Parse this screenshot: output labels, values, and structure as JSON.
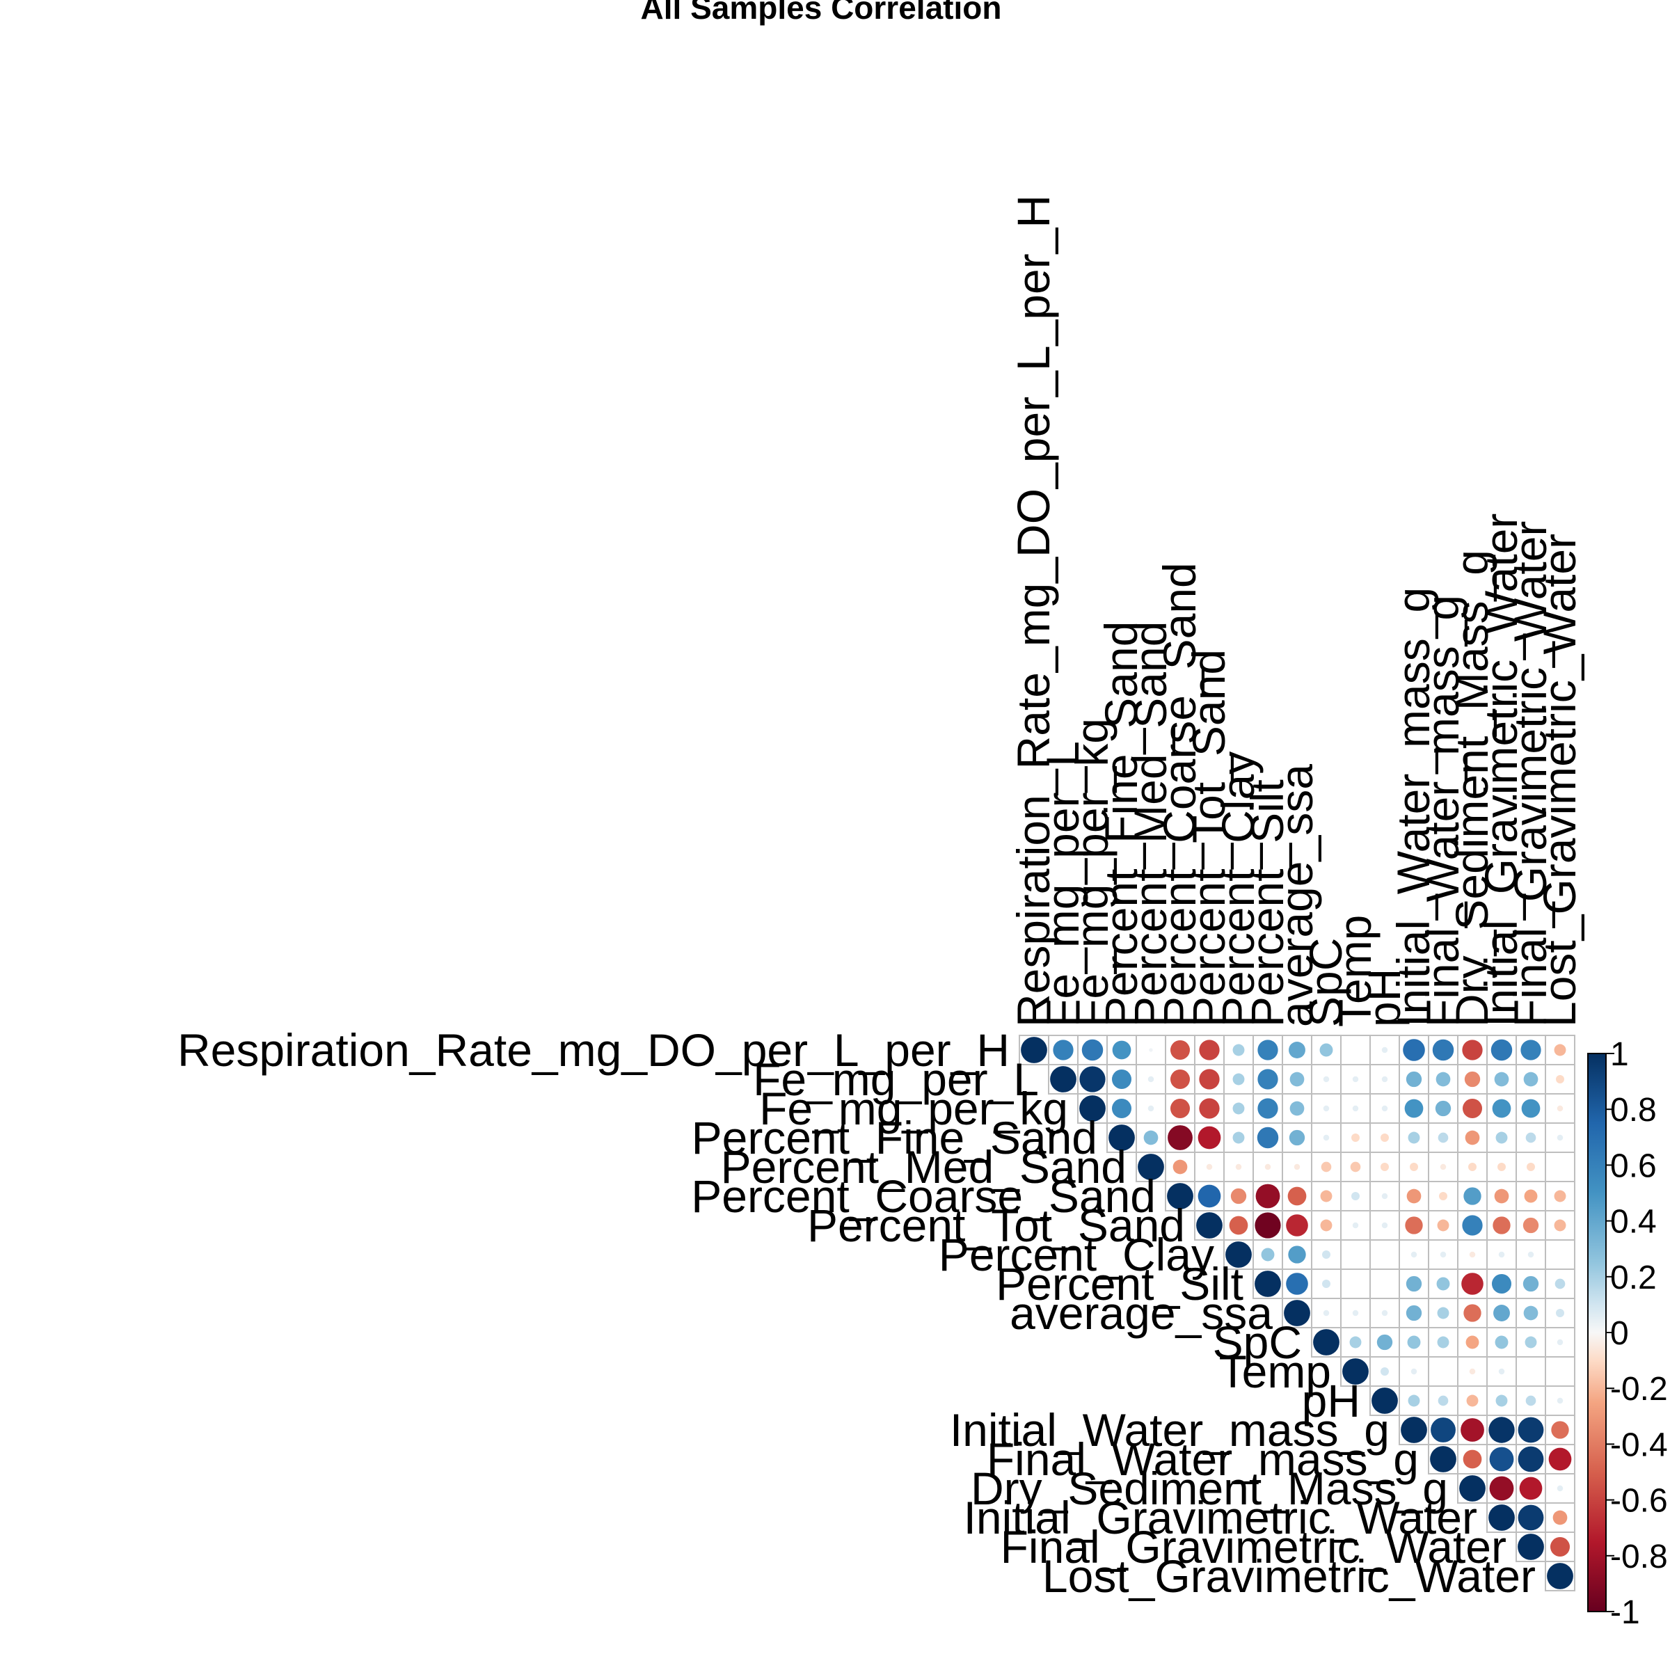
{
  "chart_data": {
    "type": "heatmap",
    "title": "All Samples Correlation",
    "xlabel": "",
    "ylabel": "",
    "variables": [
      "Respiration_Rate_mg_DO_per_L_per_H",
      "Fe_mg_per_L",
      "Fe_mg_per_kg",
      "Percent_Fine_Sand",
      "Percent_Med_Sand",
      "Percent_Coarse_Sand",
      "Percent_Tot_Sand",
      "Percent_Clay",
      "Percent_Silt",
      "average_ssa",
      "SpC",
      "Temp",
      "pH",
      "Initial_Water_mass_g",
      "Final_Water_mass_g",
      "Dry_Sediment_Mass_g",
      "Initial_Gravimetric_Water",
      "Final_Gravimetric_Water",
      "Lost_Gravimetric_Water"
    ],
    "matrix_shape": "upper-triangle",
    "values": [
      [
        1,
        0.6,
        0.65,
        0.5,
        0.02,
        -0.55,
        -0.6,
        0.2,
        0.6,
        0.4,
        0.25,
        0.0,
        0.05,
        0.7,
        0.65,
        -0.6,
        0.65,
        0.6,
        -0.2
      ],
      [
        null,
        1,
        0.97,
        0.55,
        0.05,
        -0.55,
        -0.6,
        0.2,
        0.6,
        0.3,
        0.05,
        0.05,
        0.05,
        0.35,
        0.3,
        -0.35,
        0.3,
        0.3,
        -0.1
      ],
      [
        null,
        null,
        1,
        0.55,
        0.05,
        -0.55,
        -0.6,
        0.2,
        0.6,
        0.3,
        0.05,
        0.05,
        0.05,
        0.5,
        0.35,
        -0.55,
        0.5,
        0.5,
        -0.05
      ],
      [
        null,
        null,
        null,
        1,
        0.3,
        -0.9,
        -0.75,
        0.2,
        0.65,
        0.35,
        0.05,
        -0.1,
        -0.1,
        0.2,
        0.15,
        -0.3,
        0.2,
        0.15,
        0.05
      ],
      [
        null,
        null,
        null,
        null,
        1,
        -0.3,
        -0.05,
        -0.05,
        -0.05,
        -0.05,
        -0.15,
        -0.15,
        -0.1,
        -0.1,
        -0.05,
        -0.1,
        -0.1,
        -0.1,
        0.0
      ],
      [
        null,
        null,
        null,
        null,
        null,
        1,
        0.75,
        -0.35,
        -0.85,
        -0.5,
        -0.2,
        0.1,
        0.05,
        -0.3,
        -0.1,
        0.45,
        -0.3,
        -0.25,
        -0.2
      ],
      [
        null,
        null,
        null,
        null,
        null,
        null,
        1,
        -0.5,
        -0.97,
        -0.7,
        -0.2,
        0.05,
        0.05,
        -0.45,
        -0.2,
        0.6,
        -0.45,
        -0.35,
        -0.2
      ],
      [
        null,
        null,
        null,
        null,
        null,
        null,
        null,
        1,
        0.25,
        0.45,
        0.1,
        0.0,
        0.0,
        0.05,
        0.05,
        -0.05,
        0.05,
        0.05,
        0.0
      ],
      [
        null,
        null,
        null,
        null,
        null,
        null,
        null,
        null,
        1,
        0.7,
        0.1,
        0.0,
        0.0,
        0.35,
        0.25,
        -0.7,
        0.55,
        0.35,
        0.15
      ],
      [
        null,
        null,
        null,
        null,
        null,
        null,
        null,
        null,
        null,
        1,
        0.05,
        0.05,
        0.05,
        0.35,
        0.2,
        -0.45,
        0.4,
        0.3,
        0.1
      ],
      [
        null,
        null,
        null,
        null,
        null,
        null,
        null,
        null,
        null,
        null,
        1,
        0.2,
        0.35,
        0.25,
        0.2,
        -0.25,
        0.25,
        0.2,
        0.05
      ],
      [
        null,
        null,
        null,
        null,
        null,
        null,
        null,
        null,
        null,
        null,
        null,
        1,
        0.1,
        0.05,
        0.0,
        -0.05,
        0.05,
        0.0,
        0.0
      ],
      [
        null,
        null,
        null,
        null,
        null,
        null,
        null,
        null,
        null,
        null,
        null,
        null,
        1,
        0.2,
        0.15,
        -0.2,
        0.2,
        0.15,
        0.05
      ],
      [
        null,
        null,
        null,
        null,
        null,
        null,
        null,
        null,
        null,
        null,
        null,
        null,
        null,
        1,
        0.9,
        -0.8,
        0.98,
        0.95,
        -0.45
      ],
      [
        null,
        null,
        null,
        null,
        null,
        null,
        null,
        null,
        null,
        null,
        null,
        null,
        null,
        null,
        1,
        -0.5,
        0.85,
        0.95,
        -0.75
      ],
      [
        null,
        null,
        null,
        null,
        null,
        null,
        null,
        null,
        null,
        null,
        null,
        null,
        null,
        null,
        null,
        1,
        -0.85,
        -0.75,
        0.05
      ],
      [
        null,
        null,
        null,
        null,
        null,
        null,
        null,
        null,
        null,
        null,
        null,
        null,
        null,
        null,
        null,
        null,
        1,
        0.95,
        -0.3
      ],
      [
        null,
        null,
        null,
        null,
        null,
        null,
        null,
        null,
        null,
        null,
        null,
        null,
        null,
        null,
        null,
        null,
        null,
        1,
        -0.55
      ],
      [
        null,
        null,
        null,
        null,
        null,
        null,
        null,
        null,
        null,
        null,
        null,
        null,
        null,
        null,
        null,
        null,
        null,
        null,
        1
      ]
    ],
    "colorbar": {
      "range": [
        -1,
        1
      ],
      "ticks": [
        "-1",
        "-0.8",
        "-0.6",
        "-0.4",
        "-0.2",
        "0",
        "0.2",
        "0.4",
        "0.6",
        "0.8",
        "1"
      ]
    },
    "colors": {
      "negative_end": "#67001f",
      "neutral": "#f7f7f7",
      "positive_end": "#053061",
      "grid": "#bebebe"
    }
  }
}
